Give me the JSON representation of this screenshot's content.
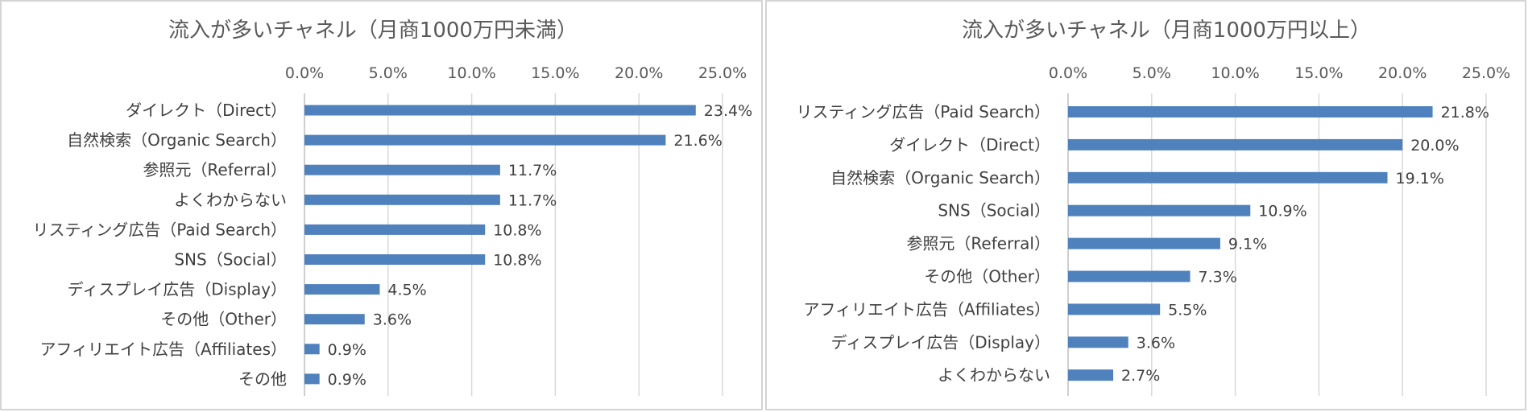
{
  "chart_data": [
    {
      "type": "bar",
      "orientation": "horizontal",
      "title": "流入が多いチャネル（月商1000万円未満）",
      "categories": [
        "ダイレクト（Direct）",
        "自然検索（Organic Search）",
        "参照元（Referral）",
        "よくわからない",
        "リスティング広告（Paid Search）",
        "SNS（Social）",
        "ディスプレイ広告（Display）",
        "その他（Other）",
        "アフィリエイト広告（Affiliates）",
        "その他"
      ],
      "values": [
        23.4,
        21.6,
        11.7,
        11.7,
        10.8,
        10.8,
        4.5,
        3.6,
        0.9,
        0.9
      ],
      "data_labels": [
        "23.4%",
        "21.6%",
        "11.7%",
        "11.7%",
        "10.8%",
        "10.8%",
        "4.5%",
        "3.6%",
        "0.9%",
        "0.9%"
      ],
      "x_ticks": [
        "0.0%",
        "5.0%",
        "10.0%",
        "15.0%",
        "20.0%",
        "25.0%"
      ],
      "xlim": [
        0,
        25
      ],
      "x_axis_position": "top",
      "grid": true,
      "bar_color": "#4f81bd"
    },
    {
      "type": "bar",
      "orientation": "horizontal",
      "title": "流入が多いチャネル（月商1000万円以上）",
      "categories": [
        "リスティング広告（Paid Search）",
        "ダイレクト（Direct）",
        "自然検索（Organic Search）",
        "SNS（Social）",
        "参照元（Referral）",
        "その他（Other）",
        "アフィリエイト広告（Affiliates）",
        "ディスプレイ広告（Display）",
        "よくわからない"
      ],
      "values": [
        21.8,
        20.0,
        19.1,
        10.9,
        9.1,
        7.3,
        5.5,
        3.6,
        2.7
      ],
      "data_labels": [
        "21.8%",
        "20.0%",
        "19.1%",
        "10.9%",
        "9.1%",
        "7.3%",
        "5.5%",
        "3.6%",
        "2.7%"
      ],
      "x_ticks": [
        "0.0%",
        "5.0%",
        "10.0%",
        "15.0%",
        "20.0%",
        "25.0%"
      ],
      "xlim": [
        0,
        25
      ],
      "x_axis_position": "top",
      "grid": true,
      "bar_color": "#4f81bd"
    }
  ]
}
